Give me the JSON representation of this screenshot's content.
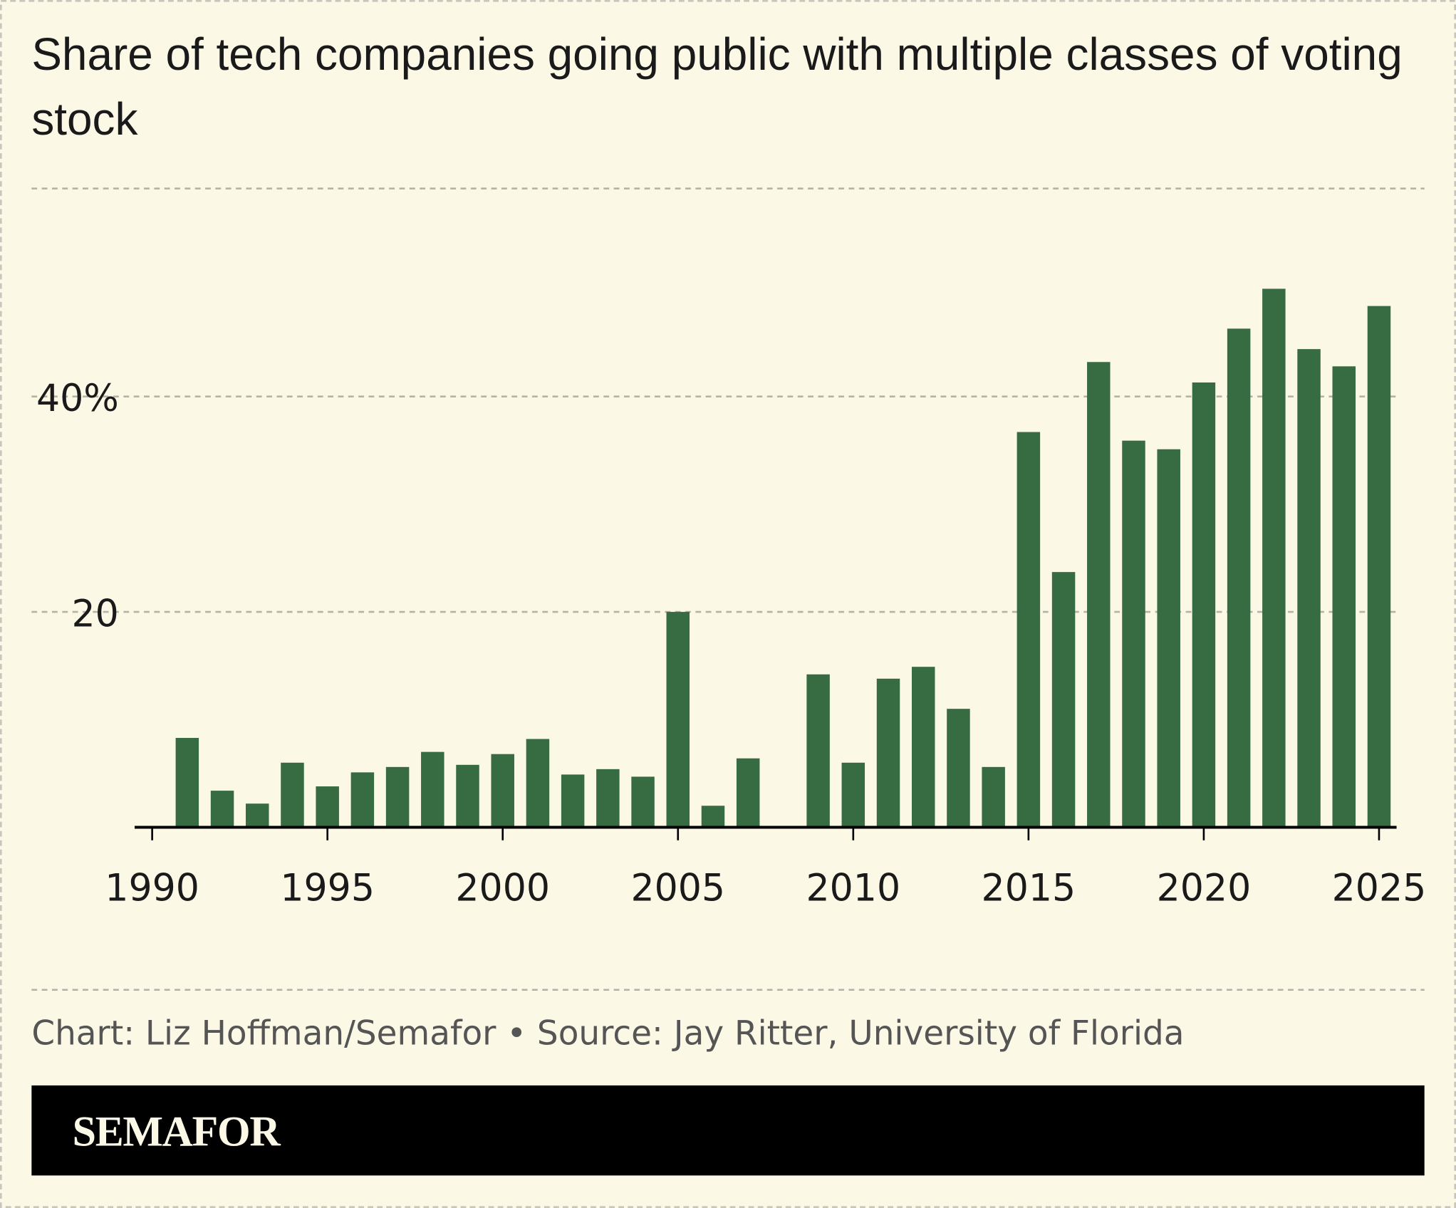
{
  "chart_data": {
    "type": "bar",
    "title": "Share of tech companies going public with multiple classes of voting stock",
    "source": "Chart: Liz Hoffman/Semafor • Source: Jay Ritter, University of Florida",
    "logo": "SEMAFOR",
    "x": [
      1991,
      1992,
      1993,
      1994,
      1995,
      1996,
      1997,
      1998,
      1999,
      2000,
      2001,
      2002,
      2003,
      2004,
      2005,
      2006,
      2007,
      2008,
      2009,
      2010,
      2011,
      2012,
      2013,
      2014,
      2015,
      2016,
      2017,
      2018,
      2019,
      2020,
      2021,
      2022,
      2023,
      2024,
      2025
    ],
    "values": [
      8.3,
      3.4,
      2.2,
      6.0,
      3.8,
      5.1,
      5.6,
      7.0,
      5.8,
      6.8,
      8.2,
      4.9,
      5.4,
      4.7,
      20,
      2.0,
      6.4,
      0,
      14.2,
      6.0,
      13.8,
      14.9,
      11.0,
      5.6,
      36.7,
      23.7,
      43.2,
      35.9,
      35.1,
      41.3,
      46.3,
      50.0,
      44.4,
      42.8,
      48.4
    ],
    "color": "#376b41",
    "xlim": [
      1989.5,
      2025.5
    ],
    "xticks": [
      1990,
      1995,
      2000,
      2005,
      2010,
      2015,
      2020,
      2025
    ],
    "ylim": [
      0,
      60
    ],
    "yticks": [
      {
        "value": 20,
        "label": "20"
      },
      {
        "value": 40,
        "label": "40%"
      }
    ],
    "grid": true
  }
}
